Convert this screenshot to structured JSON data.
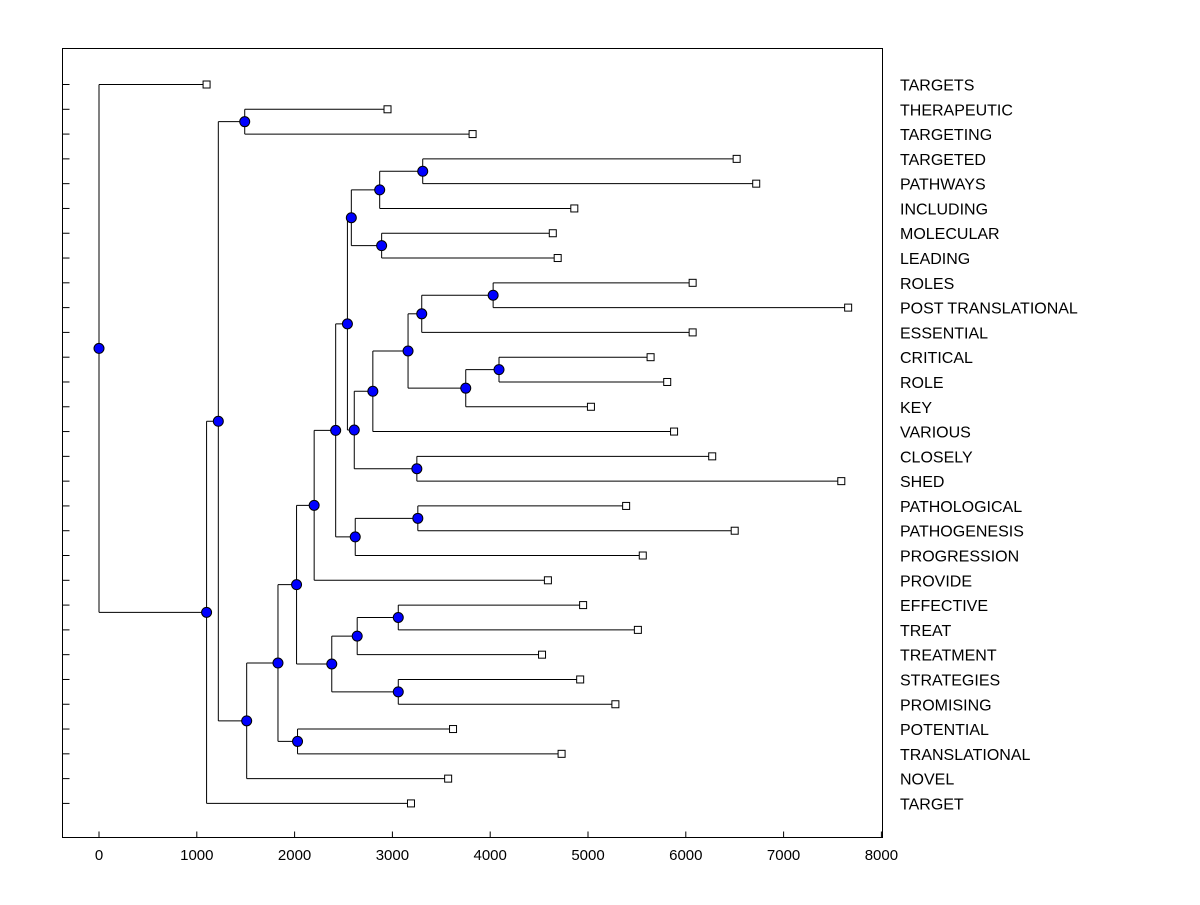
{
  "colors": {
    "background": "#ffffff",
    "line": "#000000",
    "node_fill": "#0000ff",
    "node_stroke": "#000000",
    "leaf_fill": "#ffffff"
  },
  "chart_data": {
    "type": "dendrogram",
    "title": "",
    "xlabel": "",
    "ylabel": "",
    "xlim": [
      -380,
      8050
    ],
    "xticks": [
      0,
      1000,
      2000,
      3000,
      4000,
      5000,
      6000,
      7000,
      8000
    ],
    "xtick_labels": [
      "0",
      "1000",
      "2000",
      "3000",
      "4000",
      "5000",
      "6000",
      "7000",
      "8000"
    ],
    "leaves": [
      {
        "label": "TARGETS",
        "x": 1100
      },
      {
        "label": "THERAPEUTIC",
        "x": 2950
      },
      {
        "label": "TARGETING",
        "x": 3820
      },
      {
        "label": "TARGETED",
        "x": 6520
      },
      {
        "label": "PATHWAYS",
        "x": 6720
      },
      {
        "label": "INCLUDING",
        "x": 4860
      },
      {
        "label": "MOLECULAR",
        "x": 4640
      },
      {
        "label": "LEADING",
        "x": 4690
      },
      {
        "label": "ROLES",
        "x": 6070
      },
      {
        "label": "POST TRANSLATIONAL",
        "x": 7660
      },
      {
        "label": "ESSENTIAL",
        "x": 6070
      },
      {
        "label": "CRITICAL",
        "x": 5640
      },
      {
        "label": "ROLE",
        "x": 5810
      },
      {
        "label": "KEY",
        "x": 5030
      },
      {
        "label": "VARIOUS",
        "x": 5880
      },
      {
        "label": "CLOSELY",
        "x": 6270
      },
      {
        "label": "SHED",
        "x": 7590
      },
      {
        "label": "PATHOLOGICAL",
        "x": 5390
      },
      {
        "label": "PATHOGENESIS",
        "x": 6500
      },
      {
        "label": "PROGRESSION",
        "x": 5560
      },
      {
        "label": "PROVIDE",
        "x": 4590
      },
      {
        "label": "EFFECTIVE",
        "x": 4950
      },
      {
        "label": "TREAT",
        "x": 5510
      },
      {
        "label": "TREATMENT",
        "x": 4530
      },
      {
        "label": "STRATEGIES",
        "x": 4920
      },
      {
        "label": "PROMISING",
        "x": 5280
      },
      {
        "label": "POTENTIAL",
        "x": 3620
      },
      {
        "label": "TRANSLATIONAL",
        "x": 4730
      },
      {
        "label": "NOVEL",
        "x": 3570
      },
      {
        "label": "TARGET",
        "x": 3190
      }
    ],
    "merges": [
      {
        "id": "m1",
        "x": 3310,
        "children": [
          "L3",
          "L4"
        ]
      },
      {
        "id": "m2",
        "x": 2870,
        "children": [
          "m1",
          "L5"
        ]
      },
      {
        "id": "m3",
        "x": 2890,
        "children": [
          "L6",
          "L7"
        ]
      },
      {
        "id": "m4",
        "x": 2580,
        "children": [
          "m2",
          "m3"
        ]
      },
      {
        "id": "m5",
        "x": 4030,
        "children": [
          "L8",
          "L9"
        ]
      },
      {
        "id": "m6",
        "x": 3300,
        "children": [
          "m5",
          "L10"
        ]
      },
      {
        "id": "m7",
        "x": 4090,
        "children": [
          "L11",
          "L12"
        ]
      },
      {
        "id": "m8",
        "x": 3750,
        "children": [
          "m7",
          "L13"
        ]
      },
      {
        "id": "m9",
        "x": 3160,
        "children": [
          "m6",
          "m8"
        ]
      },
      {
        "id": "m10",
        "x": 2800,
        "children": [
          "m9",
          "L14"
        ]
      },
      {
        "id": "m11",
        "x": 3250,
        "children": [
          "L15",
          "L16"
        ]
      },
      {
        "id": "m12",
        "x": 2610,
        "children": [
          "m10",
          "m11"
        ]
      },
      {
        "id": "m13",
        "x": 2540,
        "children": [
          "m4",
          "m12"
        ]
      },
      {
        "id": "m14",
        "x": 3260,
        "children": [
          "L17",
          "L18"
        ]
      },
      {
        "id": "m15",
        "x": 2620,
        "children": [
          "m14",
          "L19"
        ]
      },
      {
        "id": "m16",
        "x": 2420,
        "children": [
          "m13",
          "m15"
        ]
      },
      {
        "id": "m17",
        "x": 2200,
        "children": [
          "m16",
          "L20"
        ]
      },
      {
        "id": "m18",
        "x": 3060,
        "children": [
          "L21",
          "L22"
        ]
      },
      {
        "id": "m19",
        "x": 2640,
        "children": [
          "m18",
          "L23"
        ]
      },
      {
        "id": "m20",
        "x": 3060,
        "children": [
          "L24",
          "L25"
        ]
      },
      {
        "id": "m21",
        "x": 2380,
        "children": [
          "m19",
          "m20"
        ]
      },
      {
        "id": "m22",
        "x": 2020,
        "children": [
          "m17",
          "m21"
        ]
      },
      {
        "id": "m23",
        "x": 2030,
        "children": [
          "L26",
          "L27"
        ]
      },
      {
        "id": "m24",
        "x": 1830,
        "children": [
          "m22",
          "m23"
        ]
      },
      {
        "id": "m25",
        "x": 1510,
        "children": [
          "m24",
          "L28"
        ]
      },
      {
        "id": "m26",
        "x": 1490,
        "children": [
          "L1",
          "L2"
        ]
      },
      {
        "id": "m27",
        "x": 1220,
        "children": [
          "m26",
          "m25"
        ]
      },
      {
        "id": "m28",
        "x": 1100,
        "children": [
          "m27",
          "L29"
        ]
      },
      {
        "id": "m29",
        "x": 0,
        "children": [
          "L0",
          "m28"
        ]
      }
    ]
  }
}
